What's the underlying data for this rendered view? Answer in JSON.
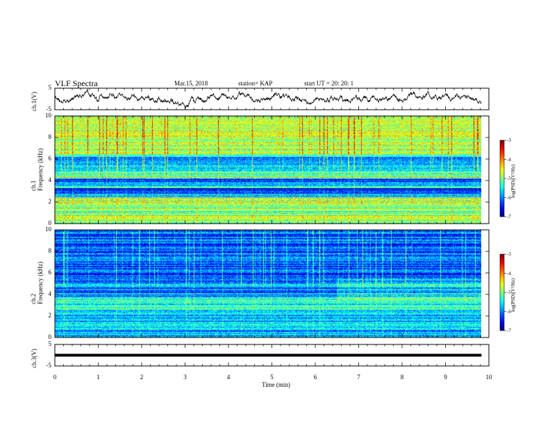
{
  "header": {
    "title": "VLF Spectra",
    "date": "Mar.15, 2018",
    "station": "station= KAP",
    "start": "start  UT  =   20: 20: 1"
  },
  "chart_data": [
    {
      "type": "line",
      "ylabel": "ch.1(V)",
      "ylim": [
        -5,
        5
      ],
      "yticks": [
        "5",
        "-5"
      ],
      "xlim": [
        0,
        10
      ],
      "x_end": 9.83,
      "baseline": 0,
      "noise_amplitude": 1.2
    },
    {
      "type": "heatmap",
      "ylabel": "ch.1\nFrequency (kHz)",
      "ylim": [
        0,
        10
      ],
      "yticks": [
        "0",
        "2",
        "4",
        "6",
        "8",
        "10"
      ],
      "xlim": [
        0,
        10
      ],
      "x_end": 9.83,
      "colorbar": {
        "label": "log(PSD)(V²/Hz)",
        "range": [
          -7,
          -3
        ],
        "ticks": [
          "-3",
          "-4",
          "-5",
          "-6",
          "-7"
        ]
      }
    },
    {
      "type": "heatmap",
      "ylabel": "ch.2\nFrequency (kHz)",
      "ylim": [
        0,
        10
      ],
      "yticks": [
        "0",
        "2",
        "4",
        "6",
        "8",
        "10"
      ],
      "xlim": [
        0,
        10
      ],
      "x_end": 9.83,
      "colorbar": {
        "label": "log(PSD)(V²/Hz)",
        "range": [
          -7,
          -3
        ],
        "ticks": [
          "-3",
          "-4",
          "-5",
          "-6",
          "-7"
        ]
      }
    },
    {
      "type": "line",
      "ylabel": "ch.3(V)",
      "ylim": [
        -5,
        5
      ],
      "yticks": [
        "5",
        "-5"
      ],
      "xlim": [
        0,
        10
      ],
      "x_end": 9.83,
      "baseline": 0,
      "noise_amplitude": 0
    }
  ],
  "xaxis": {
    "label": "Time  (min)",
    "ticks": [
      "0",
      "1",
      "2",
      "3",
      "4",
      "5",
      "6",
      "7",
      "8",
      "9",
      "10"
    ]
  },
  "colors": {
    "axis": "#000000",
    "trace": "#000000"
  }
}
